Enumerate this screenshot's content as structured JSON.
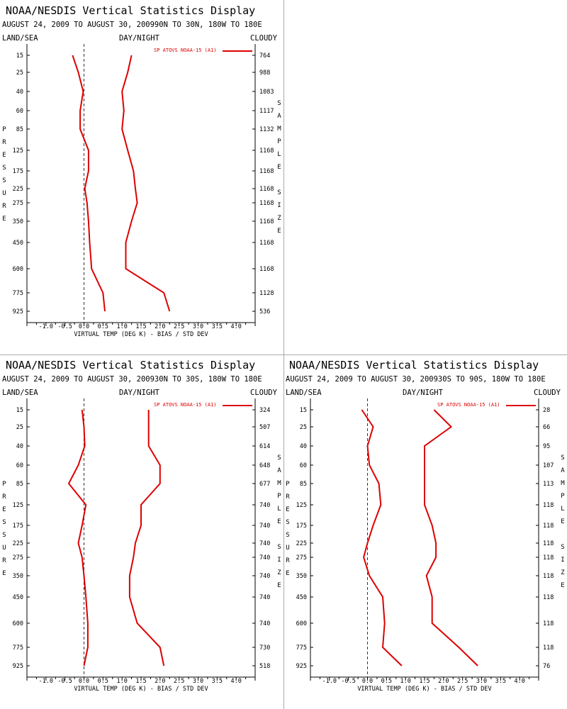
{
  "colors": {
    "line": "#dd0000",
    "axis": "#000000",
    "zero": "#000000"
  },
  "panels": [
    {
      "title": "NOAA/NESDIS Vertical Statistics Display",
      "subtitle": "AUGUST 24, 2009 TO AUGUST 30, 200990N TO 30N, 180W TO 180E",
      "land_sea": "LAND/SEA",
      "day_night": "DAY/NIGHT",
      "cloudy": "CLOUDY",
      "legend": "SP ATOVS NOAA-15 (A1)",
      "xlabel": "VIRTUAL TEMP (DEG K) - BIAS / STD DEV",
      "ylabel": "PRESSURE",
      "sample_label": "SAMPLE SIZE",
      "pressure": [
        "15",
        "25",
        "40",
        "60",
        "85",
        "125",
        "175",
        "225",
        "275",
        "350",
        "450",
        "600",
        "775",
        "925"
      ],
      "samples": [
        "764",
        "988",
        "1083",
        "1117",
        "1132",
        "1168",
        "1168",
        "1168",
        "1168",
        "1168",
        "1168",
        "1168",
        "1128",
        "536"
      ],
      "xticks": [
        "-1.0",
        "-0.5",
        "0.0",
        "0.5",
        "1.0",
        "1.5",
        "2.0",
        "2.5",
        "3.0",
        "3.5",
        "4.0"
      ]
    },
    {
      "title": "NOAA/NESDIS Vertical Statistics Display",
      "subtitle": "AUGUST 24, 2009 TO AUGUST 30, 200930N TO 30S, 180W TO 180E",
      "land_sea": "LAND/SEA",
      "day_night": "DAY/NIGHT",
      "cloudy": "CLOUDY",
      "legend": "SP ATOVS NOAA-15 (A1)",
      "xlabel": "VIRTUAL TEMP (DEG K) - BIAS / STD DEV",
      "ylabel": "PRESSURE",
      "sample_label": "SAMPLE SIZE",
      "pressure": [
        "15",
        "25",
        "40",
        "60",
        "85",
        "125",
        "175",
        "225",
        "275",
        "350",
        "450",
        "600",
        "775",
        "925"
      ],
      "samples": [
        "324",
        "507",
        "614",
        "648",
        "677",
        "740",
        "740",
        "740",
        "740",
        "740",
        "740",
        "740",
        "730",
        "518"
      ],
      "xticks": [
        "-1.0",
        "-0.5",
        "0.0",
        "0.5",
        "1.0",
        "1.5",
        "2.0",
        "2.5",
        "3.0",
        "3.5",
        "4.0"
      ]
    },
    {
      "title": "NOAA/NESDIS Vertical Statistics Display",
      "subtitle": "AUGUST 24, 2009 TO AUGUST 30, 200930S TO 90S, 180W TO 180E",
      "land_sea": "LAND/SEA",
      "day_night": "DAY/NIGHT",
      "cloudy": "CLOUDY",
      "legend": "SP ATOVS NOAA-15 (A1)",
      "xlabel": "VIRTUAL TEMP (DEG K) - BIAS / STD DEV",
      "ylabel": "PRESSURE",
      "sample_label": "SAMPLE SIZE",
      "pressure": [
        "15",
        "25",
        "40",
        "60",
        "85",
        "125",
        "175",
        "225",
        "275",
        "350",
        "450",
        "600",
        "775",
        "925"
      ],
      "samples": [
        "28",
        "66",
        "95",
        "107",
        "113",
        "118",
        "118",
        "118",
        "118",
        "118",
        "118",
        "118",
        "118",
        "76"
      ],
      "xticks": [
        "-1.0",
        "-0.5",
        "0.0",
        "0.5",
        "1.0",
        "1.5",
        "2.0",
        "2.5",
        "3.0",
        "3.5",
        "4.0"
      ]
    }
  ],
  "chart_data": [
    {
      "type": "line",
      "title": "NOAA/NESDIS Vertical Statistics Display",
      "xlabel": "VIRTUAL TEMP (DEG K) - BIAS / STD DEV",
      "ylabel": "PRESSURE",
      "xlim": [
        -1.5,
        4.5
      ],
      "pressure": [
        15,
        25,
        40,
        60,
        85,
        125,
        175,
        225,
        275,
        350,
        450,
        600,
        775,
        925
      ],
      "series": [
        {
          "name": "SP ATOVS NOAA-15 (A1)",
          "values": [
            -0.3,
            -0.15,
            -0.02,
            -0.1,
            -0.1,
            0.12,
            0.12,
            0.02,
            0.08,
            0.12,
            0.15,
            0.2,
            0.5,
            0.55
          ]
        },
        {
          "name": "",
          "values": [
            1.25,
            1.15,
            1.0,
            1.05,
            1.0,
            1.15,
            1.3,
            1.35,
            1.4,
            1.25,
            1.1,
            1.1,
            2.1,
            2.25
          ]
        }
      ]
    },
    {
      "type": "line",
      "title": "NOAA/NESDIS Vertical Statistics Display",
      "xlabel": "VIRTUAL TEMP (DEG K) - BIAS / STD DEV",
      "ylabel": "PRESSURE",
      "xlim": [
        -1.5,
        4.5
      ],
      "pressure": [
        15,
        25,
        40,
        60,
        85,
        125,
        175,
        225,
        275,
        350,
        450,
        600,
        775,
        925
      ],
      "series": [
        {
          "name": "SP ATOVS NOAA-15 (A1)",
          "values": [
            -0.05,
            0.0,
            0.02,
            -0.15,
            -0.4,
            0.05,
            -0.05,
            -0.15,
            -0.05,
            0.0,
            0.05,
            0.1,
            0.1,
            0.0
          ]
        },
        {
          "name": "",
          "values": [
            1.7,
            1.7,
            1.7,
            2.0,
            2.0,
            1.5,
            1.5,
            1.35,
            1.3,
            1.2,
            1.2,
            1.4,
            2.0,
            2.1
          ]
        }
      ]
    },
    {
      "type": "line",
      "title": "NOAA/NESDIS Vertical Statistics Display",
      "xlabel": "VIRTUAL TEMP (DEG K) - BIAS / STD DEV",
      "ylabel": "PRESSURE",
      "xlim": [
        -1.5,
        4.5
      ],
      "pressure": [
        15,
        25,
        40,
        60,
        85,
        125,
        175,
        225,
        275,
        350,
        450,
        600,
        775,
        925
      ],
      "series": [
        {
          "name": "SP ATOVS NOAA-15 (A1)",
          "values": [
            -0.15,
            0.15,
            0.0,
            0.05,
            0.3,
            0.35,
            0.15,
            0.0,
            -0.1,
            0.05,
            0.4,
            0.45,
            0.4,
            0.9
          ]
        },
        {
          "name": "",
          "values": [
            1.75,
            2.2,
            1.5,
            1.5,
            1.5,
            1.5,
            1.7,
            1.8,
            1.8,
            1.55,
            1.7,
            1.7,
            2.4,
            2.9
          ]
        }
      ]
    }
  ]
}
